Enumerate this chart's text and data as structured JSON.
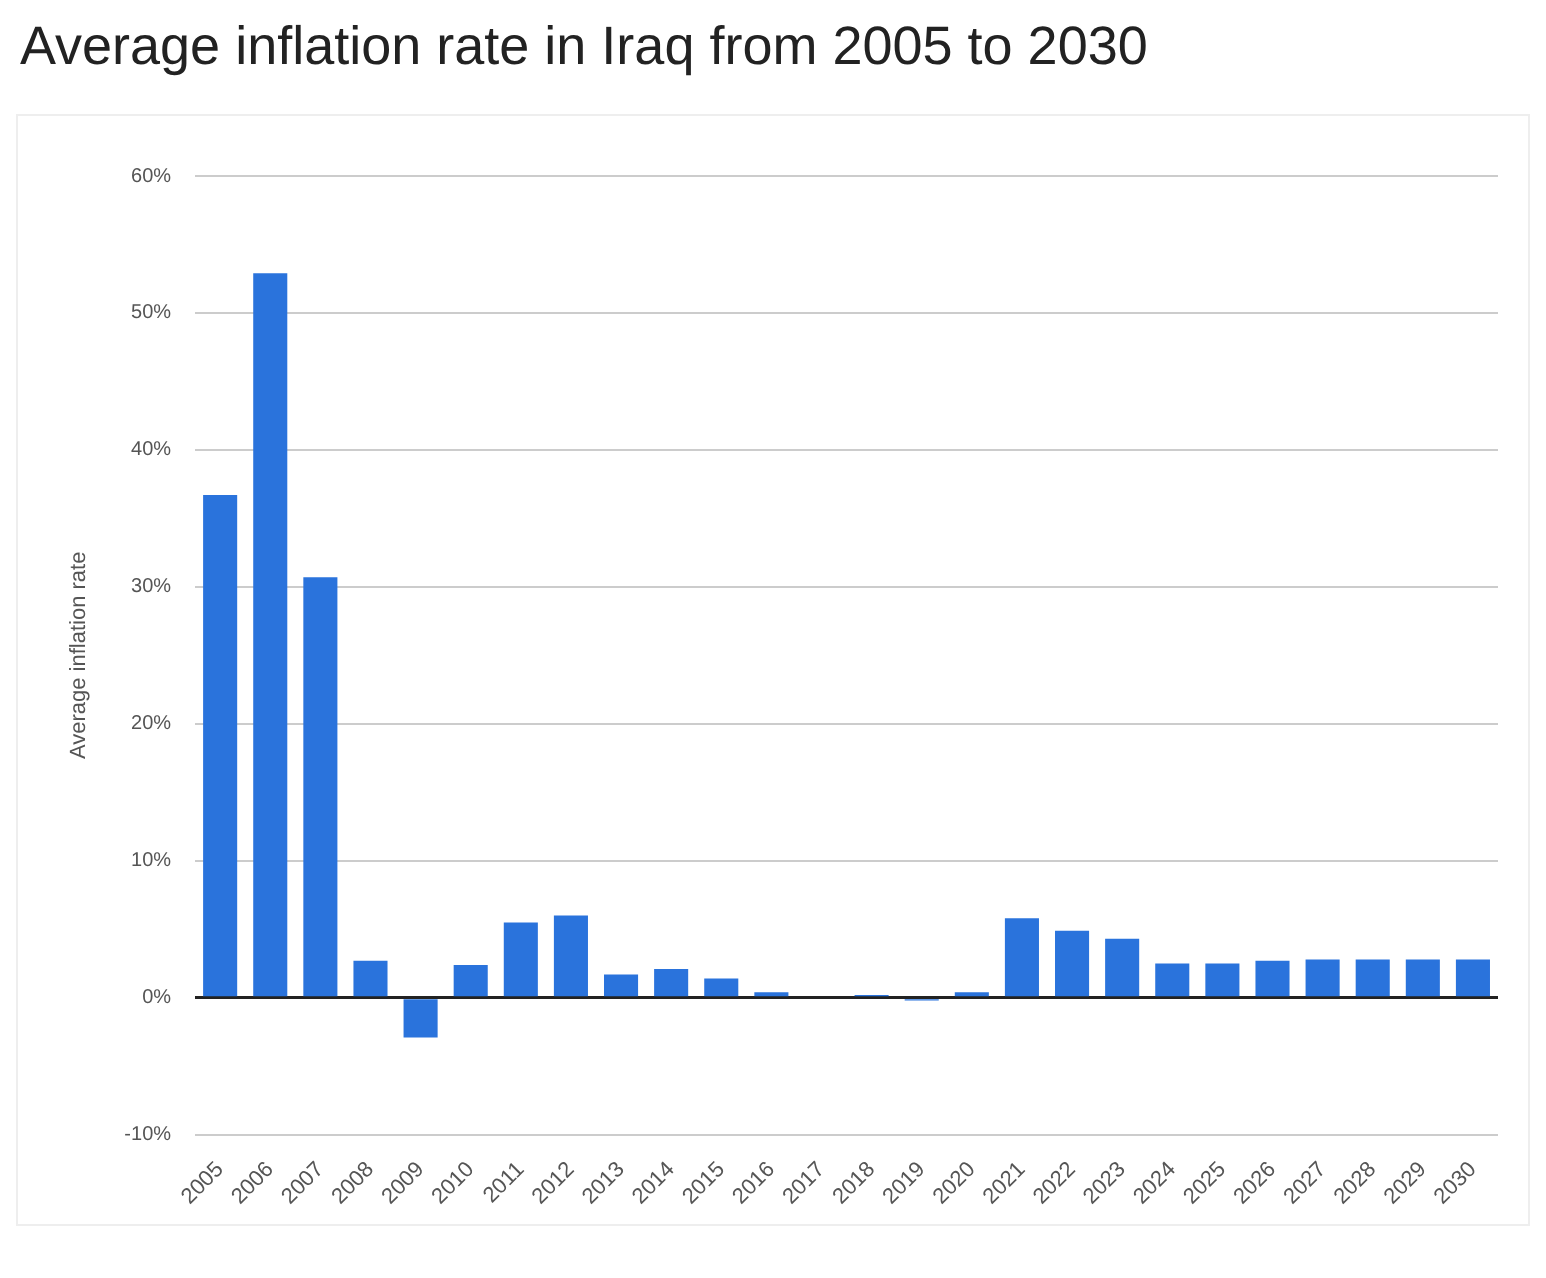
{
  "chart_data": {
    "type": "bar",
    "title": "Average inflation rate in Iraq from 2005 to 2030",
    "ylabel": "Average inflation rate",
    "categories": [
      "2005",
      "2006",
      "2007",
      "2008",
      "2009",
      "2010",
      "2011",
      "2012",
      "2013",
      "2014",
      "2015",
      "2016",
      "2017",
      "2018",
      "2019",
      "2020",
      "2021",
      "2022",
      "2023",
      "2024",
      "2025",
      "2026",
      "2027",
      "2028",
      "2029",
      "2030"
    ],
    "values": [
      36.7,
      52.9,
      30.7,
      2.7,
      -2.9,
      2.4,
      5.5,
      6.0,
      1.7,
      2.1,
      1.4,
      0.4,
      null,
      0.2,
      -0.2,
      0.4,
      5.8,
      4.9,
      4.3,
      2.5,
      2.5,
      2.7,
      2.8,
      2.8,
      2.8,
      2.8
    ],
    "color": "#2a73dc",
    "ylim": [
      -10,
      60
    ],
    "yticks": [
      {
        "value": -10,
        "label": "-10%"
      },
      {
        "value": 0,
        "label": "0%"
      },
      {
        "value": 10,
        "label": "10%"
      },
      {
        "value": 20,
        "label": "20%"
      },
      {
        "value": 30,
        "label": "30%"
      },
      {
        "value": 40,
        "label": "40%"
      },
      {
        "value": 50,
        "label": "50%"
      },
      {
        "value": 60,
        "label": "60%"
      }
    ],
    "grid": "y",
    "legend": false
  }
}
